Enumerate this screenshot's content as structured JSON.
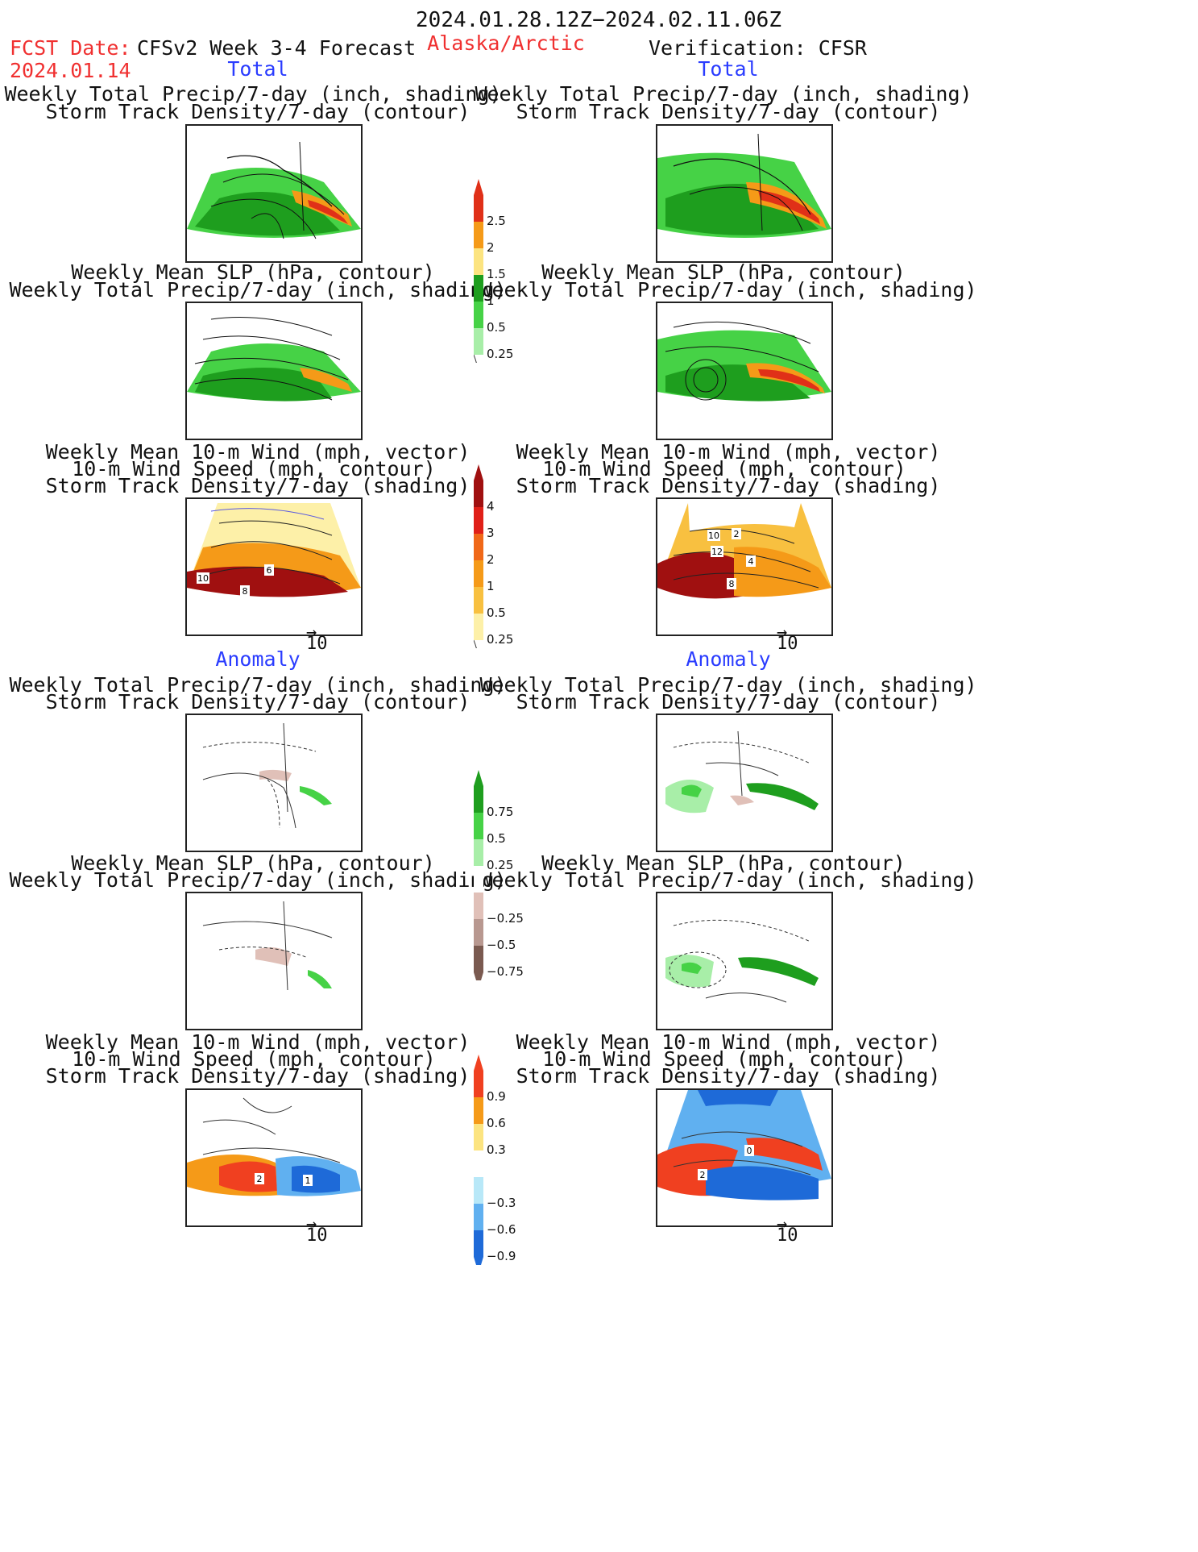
{
  "header": {
    "date_range": "2024.01.28.12Z−2024.02.11.06Z",
    "fcst_date_label": "FCST Date:",
    "fcst_date_value": "2024.01.14",
    "product": "CFSv2 Week 3-4 Forecast",
    "region": "Alaska/Arctic",
    "verification": "Verification: CFSR"
  },
  "sections": {
    "total_left": "Total",
    "total_right": "Total",
    "anomaly_left": "Anomaly",
    "anomaly_right": "Anomaly"
  },
  "titles": {
    "precip_storm": [
      "Weekly Total Precip/7-day (inch, shading)",
      "Storm Track Density/7-day (contour)"
    ],
    "slp_precip": [
      "Weekly Mean SLP (hPa, contour)",
      "Weekly Total Precip/7-day (inch, shading)"
    ],
    "wind_storm": [
      "Weekly Mean 10-m Wind (mph, vector)",
      "10-m Wind Speed (mph, contour)",
      "Storm Track Density/7-day (shading)"
    ]
  },
  "vector_scale": "10",
  "colorbars": {
    "precip_total": {
      "labels": [
        "2.5",
        "2",
        "1.5",
        "1",
        "0.5",
        "0.25"
      ],
      "colors": [
        "#e03018",
        "#f59a18",
        "#fce480",
        "#1e9e1e",
        "#46d246",
        "#a8eea8"
      ]
    },
    "storm_total": {
      "labels": [
        "4",
        "3",
        "2",
        "1",
        "0.5",
        "0.25"
      ],
      "colors": [
        "#a01010",
        "#e02018",
        "#f06818",
        "#f59a18",
        "#f8c040",
        "#fdf0a8"
      ]
    },
    "precip_anom": {
      "labels": [
        "0.75",
        "0.5",
        "0.25",
        "−0.25",
        "−0.5",
        "−0.75"
      ],
      "colors": [
        "#1e9e1e",
        "#46d246",
        "#a8eea8",
        "#ffffff",
        "#e0c0b8",
        "#b89890",
        "#7a5a50"
      ]
    },
    "storm_anom": {
      "labels": [
        "0.9",
        "0.6",
        "0.3",
        "−0.3",
        "−0.6",
        "−0.9"
      ],
      "colors": [
        "#f04020",
        "#f59a18",
        "#fce480",
        "#ffffff",
        "#b8e8f8",
        "#60b0f0",
        "#1e6ad8"
      ]
    }
  },
  "map_labels": {
    "wind_total_fcst": [
      "10",
      "8",
      "6"
    ],
    "wind_total_obs": [
      "10",
      "12",
      "2",
      "4",
      "8"
    ],
    "wind_anom_fcst": [
      "2",
      "1"
    ],
    "wind_anom_obs": [
      "2",
      "0"
    ]
  }
}
